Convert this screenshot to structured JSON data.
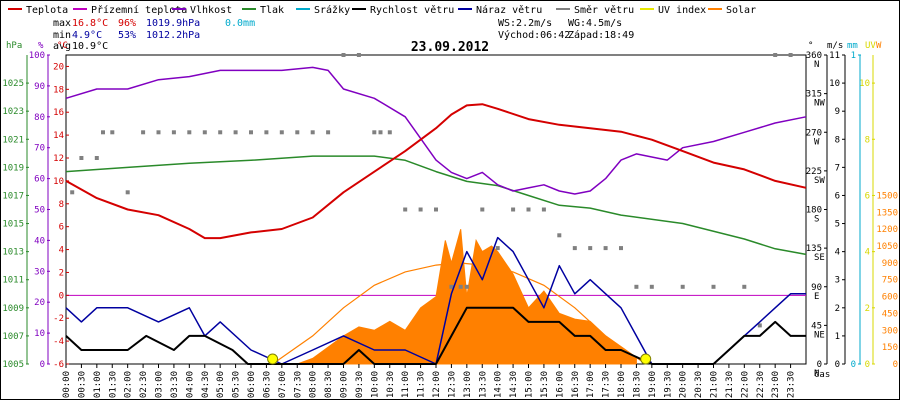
{
  "legend": [
    {
      "label": "Teplota",
      "color": "#d40000"
    },
    {
      "label": "Přízemní teplota",
      "color": "#c000c0"
    },
    {
      "label": "Vlhkost",
      "color": "#8000c0"
    },
    {
      "label": "Tlak",
      "color": "#2a8a2a"
    },
    {
      "label": "Srážky",
      "color": "#00aacc"
    },
    {
      "label": "Rychlost větru",
      "color": "#000000"
    },
    {
      "label": "Náraz větru",
      "color": "#0000a0"
    },
    {
      "label": "Směr větru",
      "color": "#808080"
    },
    {
      "label": "UV index",
      "color": "#e8e800"
    },
    {
      "label": "Solar",
      "color": "#ff8000"
    }
  ],
  "stats": {
    "max": {
      "label": "max",
      "temp": "16.8°C",
      "hum": "96%",
      "press": "1019.9hPa",
      "rain": "0.0mm"
    },
    "min": {
      "label": "min",
      "temp": "4.9°C",
      "hum": "53%",
      "press": "1012.2hPa"
    },
    "avg": {
      "label": "avg",
      "temp": "10.9°C"
    },
    "ws": "WS:2.2m/s",
    "wg": "WG:4.5m/s",
    "sunrise": "Východ:06:42",
    "sunset": "Západ:18:49"
  },
  "colors": {
    "temp": "#d40000",
    "ground": "#c000c0",
    "hum": "#8000c0",
    "press": "#2a8a2a",
    "rain": "#00aacc",
    "wind": "#000000",
    "gust": "#0000a0",
    "dir": "#808080",
    "uv": "#e8e800",
    "solar": "#ff8000",
    "sun": "#ff8000"
  },
  "chart_data": {
    "type": "line",
    "title": "23.09.2012",
    "xlabel": "čas",
    "x_ticks": [
      "00:00",
      "00:30",
      "01:00",
      "01:30",
      "02:00",
      "02:30",
      "03:00",
      "03:30",
      "04:00",
      "04:30",
      "05:00",
      "05:30",
      "06:00",
      "06:30",
      "07:00",
      "07:30",
      "08:00",
      "08:30",
      "09:00",
      "09:30",
      "10:00",
      "10:30",
      "11:00",
      "11:30",
      "12:00",
      "12:30",
      "13:00",
      "13:30",
      "14:00",
      "14:30",
      "15:00",
      "15:30",
      "16:00",
      "16:30",
      "17:00",
      "17:30",
      "18:00",
      "18:30",
      "19:00",
      "19:30",
      "20:00",
      "20:30",
      "21:00",
      "21:30",
      "22:00",
      "22:30",
      "23:00",
      "23:30"
    ],
    "axes": {
      "press": {
        "unit": "hPa",
        "range": [
          1005,
          1027
        ],
        "ticks": [
          "1005",
          "1007",
          "1009",
          "1011",
          "1013",
          "1015",
          "1017",
          "1019",
          "1021",
          "1023",
          "1025"
        ]
      },
      "hum": {
        "unit": "%",
        "range": [
          0,
          100
        ],
        "ticks": [
          "0",
          "10",
          "20",
          "30",
          "40",
          "50",
          "60",
          "70",
          "80",
          "90",
          "100"
        ]
      },
      "temp": {
        "unit": "°C",
        "range": [
          -6,
          21
        ],
        "ticks": [
          "-6",
          "-4",
          "-2",
          "0",
          "2",
          "4",
          "6",
          "8",
          "10",
          "12",
          "14",
          "16",
          "18",
          "20"
        ]
      },
      "dir": {
        "range": [
          0,
          360
        ],
        "ticks": [
          "0",
          "45",
          "90",
          "135",
          "180",
          "225",
          "270",
          "315",
          "360"
        ],
        "cardinals": [
          "N",
          "NE",
          "E",
          "SE",
          "S",
          "SW",
          "W",
          "NW",
          "N"
        ]
      },
      "wind": {
        "unit": "m/s",
        "range": [
          0,
          11
        ],
        "ticks": [
          "0",
          "1",
          "2",
          "3",
          "4",
          "5",
          "6",
          "7",
          "8",
          "9",
          "10",
          "11"
        ]
      },
      "rain": {
        "unit": "mm",
        "range": [
          0,
          1
        ],
        "ticks": [
          "0",
          "1"
        ]
      },
      "uv": {
        "unit": "UV",
        "range": [
          0,
          11
        ],
        "ticks": [
          "0",
          "2",
          "4",
          "6",
          "8",
          "10"
        ]
      },
      "solar": {
        "unit": "W",
        "range": [
          0,
          2750
        ],
        "ticks": [
          "0",
          "150",
          "300",
          "450",
          "600",
          "750",
          "900",
          "1050",
          "1200",
          "1350",
          "1500"
        ]
      }
    },
    "series": [
      {
        "name": "Teplota",
        "axis": "temp",
        "x": [
          0,
          1,
          2,
          3,
          4,
          4.5,
          5,
          6,
          7,
          8,
          9,
          10,
          11,
          12,
          12.5,
          13,
          13.5,
          14,
          15,
          16,
          17,
          18,
          19,
          20,
          21,
          22,
          23,
          24
        ],
        "y": [
          10,
          8.5,
          7.5,
          7,
          5.8,
          5,
          5,
          5.5,
          5.8,
          6.8,
          9,
          10.8,
          12.6,
          14.6,
          15.8,
          16.6,
          16.7,
          16.3,
          15.4,
          14.9,
          14.6,
          14.3,
          13.6,
          12.6,
          11.6,
          11,
          10,
          9.4
        ]
      },
      {
        "name": "Vlhkost",
        "axis": "hum",
        "x": [
          0,
          1,
          2,
          3,
          4,
          5,
          6,
          7,
          8,
          8.5,
          9,
          10,
          11,
          11.5,
          12,
          12.5,
          13,
          13.5,
          14,
          14.5,
          15,
          15.5,
          16,
          16.5,
          17,
          17.5,
          18,
          18.5,
          19,
          19.5,
          20,
          21,
          22,
          23,
          24
        ],
        "y": [
          86,
          89,
          89,
          92,
          93,
          95,
          95,
          95,
          96,
          95,
          89,
          86,
          80,
          73,
          66,
          62,
          60,
          62,
          58,
          56,
          57,
          58,
          56,
          55,
          56,
          60,
          66,
          68,
          67,
          66,
          70,
          72,
          75,
          78,
          80
        ]
      },
      {
        "name": "Tlak",
        "axis": "press",
        "x": [
          0,
          2,
          4,
          6,
          8,
          10,
          11,
          12,
          13,
          14,
          15,
          16,
          17,
          18,
          20,
          22,
          23,
          24
        ],
        "y": [
          1018.7,
          1019,
          1019.3,
          1019.5,
          1019.8,
          1019.8,
          1019.5,
          1018.7,
          1018,
          1017.7,
          1017,
          1016.3,
          1016.1,
          1015.6,
          1015,
          1013.9,
          1013.2,
          1012.8
        ]
      },
      {
        "name": "Rychlost větru",
        "axis": "wind",
        "x": [
          0,
          0.5,
          2,
          2.6,
          3.5,
          4,
          4.5,
          5.4,
          5.9,
          7,
          8,
          9,
          9.5,
          10,
          11,
          12,
          12.5,
          13,
          13.5,
          14,
          14.5,
          15,
          15.5,
          16,
          16.5,
          17,
          17.5,
          18,
          19,
          20,
          21,
          21.5,
          22,
          22.5,
          23,
          23.5,
          24
        ],
        "y": [
          1,
          0.5,
          0.5,
          1,
          0.5,
          1,
          1,
          0.5,
          0,
          0,
          0,
          0,
          0.5,
          0,
          0,
          0,
          1,
          2,
          2,
          2,
          2,
          1.5,
          1.5,
          1.5,
          1,
          1,
          0.5,
          0.5,
          0,
          0,
          0,
          0.5,
          1,
          1,
          1.5,
          1,
          1
        ]
      },
      {
        "name": "Náraz větru",
        "axis": "gust",
        "x": [
          0,
          0.5,
          1,
          2,
          3,
          4,
          4.5,
          5,
          6,
          7,
          8,
          9,
          10,
          11,
          12,
          12.5,
          13,
          13.5,
          14,
          14.5,
          15,
          15.5,
          16,
          16.5,
          17,
          17.5,
          18,
          18.5,
          19,
          20,
          21,
          22,
          22.5,
          23,
          23.5,
          24
        ],
        "y": [
          2,
          1.5,
          2,
          2,
          1.5,
          2,
          1,
          1.5,
          0.5,
          0,
          0.5,
          1,
          0.5,
          0.5,
          0,
          2.5,
          4,
          3,
          4.5,
          4,
          3,
          2,
          3.5,
          2.5,
          3,
          2.5,
          2,
          1,
          0,
          0,
          0,
          1,
          1.5,
          2,
          2.5,
          2.5
        ]
      },
      {
        "name": "Solar",
        "axis": "solar",
        "x": [
          7.5,
          8,
          8.5,
          9,
          9.5,
          10,
          10.5,
          11,
          11.5,
          12,
          12.3,
          12.5,
          12.8,
          13,
          13.3,
          13.5,
          13.8,
          14,
          14.5,
          15,
          15.5,
          16,
          16.5,
          17,
          17.5,
          18,
          18.5
        ],
        "y": [
          0,
          50,
          150,
          250,
          330,
          300,
          380,
          300,
          500,
          600,
          1100,
          900,
          1200,
          600,
          1100,
          1000,
          1050,
          1000,
          800,
          500,
          650,
          450,
          400,
          380,
          250,
          150,
          50
        ]
      },
      {
        "name": "UV index",
        "axis": "uv",
        "x": [
          6.7,
          18.8
        ],
        "y": [
          0,
          0
        ]
      }
    ],
    "sun_curve": {
      "axis": "solar",
      "x": [
        6.7,
        8,
        9,
        10,
        11,
        12,
        12.75,
        13.5,
        14.5,
        15.5,
        16.5,
        17.5,
        18.8
      ],
      "y": [
        0,
        250,
        500,
        700,
        820,
        880,
        900,
        880,
        820,
        700,
        500,
        250,
        0
      ]
    },
    "wind_direction": {
      "x": [
        0.2,
        0.5,
        1,
        1.2,
        1.5,
        2,
        2.5,
        3,
        3.5,
        4,
        4.5,
        5,
        5.5,
        6,
        6.5,
        7,
        7.5,
        8,
        8.5,
        9,
        9.5,
        10,
        10.2,
        10.5,
        11,
        11.5,
        12,
        12.5,
        12.8,
        13,
        13.5,
        14,
        14.5,
        15,
        15.5,
        16,
        16.5,
        17,
        17.5,
        18,
        18.5,
        19,
        20,
        21,
        22,
        22.5,
        23,
        23.5
      ],
      "y": [
        200,
        240,
        240,
        270,
        270,
        200,
        270,
        270,
        270,
        270,
        270,
        270,
        270,
        270,
        270,
        270,
        270,
        270,
        270,
        360,
        360,
        270,
        270,
        270,
        180,
        180,
        180,
        90,
        90,
        90,
        180,
        135,
        180,
        180,
        180,
        150,
        135,
        135,
        135,
        135,
        90,
        90,
        90,
        90,
        90,
        45,
        360,
        360
      ]
    }
  }
}
